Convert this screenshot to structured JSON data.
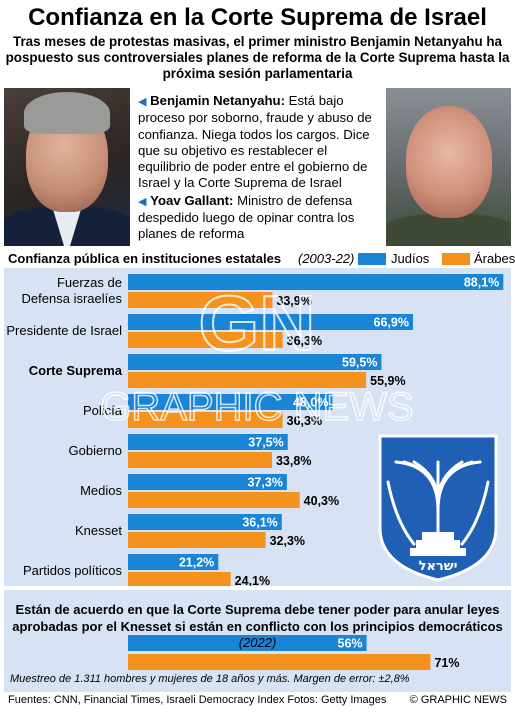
{
  "title": "Confianza en la Corte Suprema de Israel",
  "subtitle": "Tras meses de protestas masivas, el primer ministro Benjamin Netanyahu ha pospuesto sus controversiales planes de reforma de la Corte Suprema hasta la próxima sesión parlamentaria",
  "bio": [
    {
      "name": "Benjamin Netanyahu:",
      "text": " Está bajo proceso por soborno, fraude y abuso de confianza. Niega todos los cargos. Dice que su objetivo es restablecer el equilibrio de poder entre el gobierno de Israel y la Corte Suprema de Israel"
    },
    {
      "name": "Yoav Gallant:",
      "text": " Ministro de defensa despedido luego de opinar contra los planes de reforma"
    }
  ],
  "colors": {
    "judios": "#1a85d6",
    "arabes": "#f5921e",
    "panel": "#d7e3f4"
  },
  "chart_data": [
    {
      "type": "bar",
      "title": "Confianza pública en instituciones estatales",
      "years": "(2003-22)",
      "categories": [
        "Fuerzas de Defensa israelíes",
        "Presidente de Israel",
        "Corte Suprema",
        "Policía",
        "Gobierno",
        "Medios",
        "Knesset",
        "Partidos políticos"
      ],
      "category_lines": [
        [
          "Fuerzas de",
          "Defensa israelíes"
        ],
        [
          "Presidente de Israel"
        ],
        [
          "Corte Suprema"
        ],
        [
          "Policía"
        ],
        [
          "Gobierno"
        ],
        [
          "Medios"
        ],
        [
          "Knesset"
        ],
        [
          "Partidos políticos"
        ]
      ],
      "highlight": "Corte Suprema",
      "series": [
        {
          "name": "Judíos",
          "values": [
            88.1,
            66.9,
            59.5,
            48.0,
            37.5,
            37.3,
            36.1,
            21.2
          ],
          "labels": [
            "88,1%",
            "66,9%",
            "59,5%",
            "48,0%",
            "37,5%",
            "37,3%",
            "36,1%",
            "21,2%"
          ]
        },
        {
          "name": "Árabes",
          "values": [
            33.9,
            36.3,
            55.9,
            36.3,
            33.8,
            40.3,
            32.3,
            24.1
          ],
          "labels": [
            "33,9%",
            "36,3%",
            "55,9%",
            "36,3%",
            "33,8%",
            "40,3%",
            "32,3%",
            "24,1%"
          ]
        }
      ],
      "xlim": [
        0,
        100
      ]
    },
    {
      "type": "bar",
      "title": "Están de acuerdo en que la Corte Suprema debe tener poder para anular leyes aprobadas por el Knesset si están en conflicto con los principios democráticos",
      "years": "(2022)",
      "series": [
        {
          "name": "Judíos",
          "values": [
            56
          ],
          "labels": [
            "56%"
          ]
        },
        {
          "name": "Árabes",
          "values": [
            71
          ],
          "labels": [
            "71%"
          ]
        }
      ],
      "xlim": [
        0,
        100
      ]
    }
  ],
  "footnote": "Muestreo de 1.311 hombres y mujeres de 18 años y más. Margen de error: ±2,8%",
  "sources": "Fuentes: CNN, Financial Times, Israeli Democracy Index  Fotos: Getty Images",
  "brand": "© GRAPHIC NEWS",
  "watermark": {
    "logo": "GN",
    "text": "GRAPHIC NEWS"
  },
  "emblem_text": "ישראל"
}
